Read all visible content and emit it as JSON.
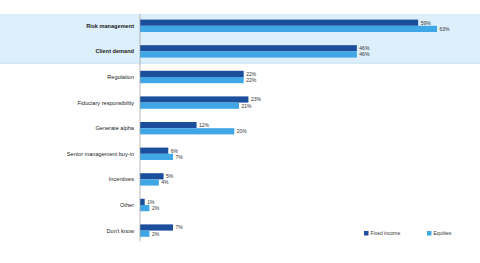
{
  "chart_data": {
    "type": "bar",
    "orientation": "horizontal",
    "categories": [
      "Risk management",
      "Client demand",
      "Regulation",
      "Fiduciary responsibility",
      "Generate alpha",
      "Senior management buy-in",
      "Incentives",
      "Other",
      "Don't know"
    ],
    "series": [
      {
        "name": "Fixed income",
        "color": "#1b4f9c",
        "values": [
          59,
          46,
          22,
          23,
          12,
          6,
          5,
          1,
          7
        ],
        "value_labels": [
          "59%",
          "46%",
          "22%",
          "23%",
          "12%",
          "6%",
          "5%",
          "1%",
          "7%"
        ]
      },
      {
        "name": "Equities",
        "color": "#3fa7e6",
        "values": [
          63,
          46,
          22,
          21,
          20,
          7,
          4,
          2,
          2
        ],
        "value_labels": [
          "63%",
          "46%",
          "22%",
          "21%",
          "20%",
          "7%",
          "4%",
          "2%",
          "2%"
        ]
      }
    ],
    "xlim": [
      0,
      70
    ],
    "tick_labels": false,
    "data_labels": true,
    "legend": "lower right"
  }
}
